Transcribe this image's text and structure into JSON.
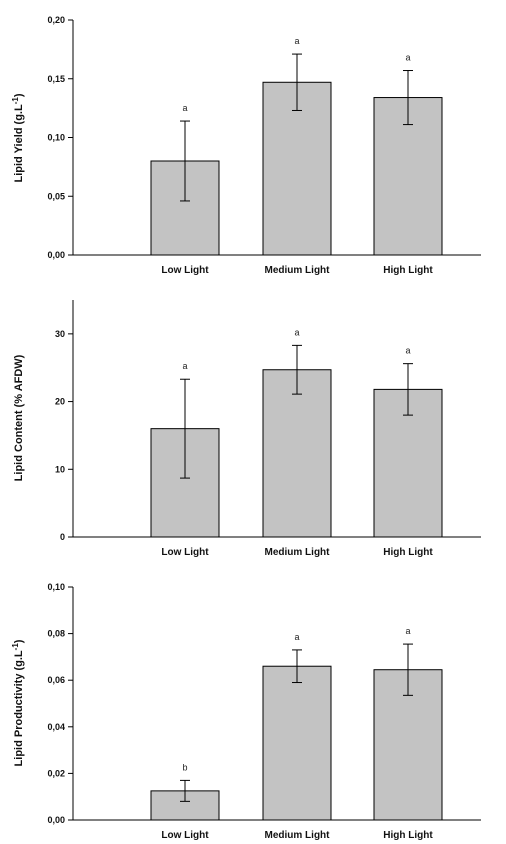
{
  "chart_data": [
    {
      "type": "bar",
      "categories": [
        "Low Light",
        "Medium Light",
        "High Light"
      ],
      "values": [
        0.08,
        0.147,
        0.134
      ],
      "errors": [
        0.034,
        0.024,
        0.023
      ],
      "significance": [
        "a",
        "a",
        "a"
      ],
      "ylabel": "Lipid Yield (g.L",
      "ylabel_sup": "-1",
      "ylabel_end": ")",
      "ylim": [
        0,
        0.2
      ],
      "yticks": [
        0,
        0.05,
        0.1,
        0.15,
        0.2
      ],
      "ytick_labels": [
        "0,00",
        "0,05",
        "0,10",
        "0,15",
        "0,20"
      ],
      "grid": false,
      "colors": {
        "bar": "#c3c3c3",
        "edge": "#000000"
      }
    },
    {
      "type": "bar",
      "categories": [
        "Low Light",
        "Medium Light",
        "High Light"
      ],
      "values": [
        16,
        24.7,
        21.8
      ],
      "errors": [
        7.3,
        3.6,
        3.8
      ],
      "significance": [
        "a",
        "a",
        "a"
      ],
      "ylabel": "Lipid Content (% AFDW)",
      "ylabel_sup": "",
      "ylabel_end": "",
      "ylim": [
        0,
        35
      ],
      "yticks": [
        0,
        10,
        20,
        30
      ],
      "ytick_labels": [
        "0",
        "10",
        "20",
        "30"
      ],
      "grid": false,
      "colors": {
        "bar": "#c3c3c3",
        "edge": "#000000"
      }
    },
    {
      "type": "bar",
      "categories": [
        "Low Light",
        "Medium Light",
        "High Light"
      ],
      "values": [
        0.0125,
        0.066,
        0.0645
      ],
      "errors": [
        0.0045,
        0.007,
        0.011
      ],
      "significance": [
        "b",
        "a",
        "a"
      ],
      "ylabel": "Lipid Productivity (g.L",
      "ylabel_sup": "-1",
      "ylabel_end": ")",
      "ylim": [
        0,
        0.1
      ],
      "yticks": [
        0,
        0.02,
        0.04,
        0.06,
        0.08,
        0.1
      ],
      "ytick_labels": [
        "0,00",
        "0,02",
        "0,04",
        "0,06",
        "0,08",
        "0,10"
      ],
      "grid": false,
      "colors": {
        "bar": "#c3c3c3",
        "edge": "#000000"
      }
    }
  ]
}
